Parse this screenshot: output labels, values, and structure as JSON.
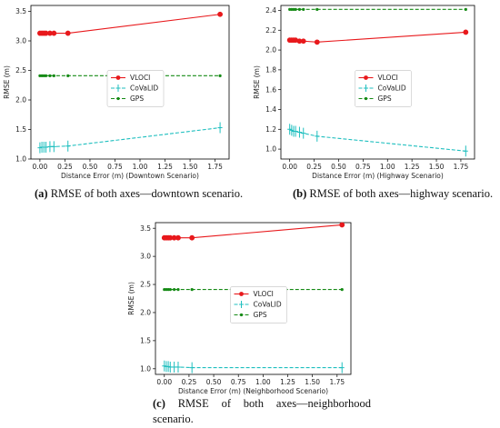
{
  "x_values": [
    0.0,
    0.02,
    0.04,
    0.06,
    0.1,
    0.14,
    0.28,
    1.8
  ],
  "chart_data": [
    {
      "type": "line",
      "xlabel": "Distance Error (m) (Downtown Scenario)",
      "ylabel": "RMSE (m)",
      "xlim": [
        -0.09,
        1.89
      ],
      "ylim": [
        1.0,
        3.6
      ],
      "xticks": [
        "0.00",
        "0.25",
        "0.50",
        "0.75",
        "1.00",
        "1.25",
        "1.50",
        "1.75"
      ],
      "yticks": [
        "1.0",
        "1.5",
        "2.0",
        "2.5",
        "3.0",
        "3.5"
      ],
      "legend": "center",
      "series": [
        {
          "name": "VLOCI",
          "color": "#e8191c",
          "marker": "diamond",
          "values": [
            3.13,
            3.13,
            3.13,
            3.13,
            3.13,
            3.13,
            3.13,
            3.45
          ]
        },
        {
          "name": "CoVaLID",
          "color": "#1fbfbf",
          "marker": "plus",
          "values": [
            1.19,
            1.2,
            1.2,
            1.2,
            1.21,
            1.21,
            1.22,
            1.53
          ]
        },
        {
          "name": "GPS",
          "color": "#158a15",
          "marker": "dot",
          "values": [
            2.41,
            2.41,
            2.41,
            2.41,
            2.41,
            2.41,
            2.41,
            2.41
          ]
        }
      ]
    },
    {
      "type": "line",
      "xlabel": "Distance Error (m) (Highway Scenario)",
      "ylabel": "RMSE (m)",
      "xlim": [
        -0.09,
        1.89
      ],
      "ylim": [
        0.9,
        2.45
      ],
      "xticks": [
        "0.00",
        "0.25",
        "0.50",
        "0.75",
        "1.00",
        "1.25",
        "1.50",
        "1.75"
      ],
      "yticks": [
        "1.0",
        "1.2",
        "1.4",
        "1.6",
        "1.8",
        "2.0",
        "2.2",
        "2.4"
      ],
      "legend": "center",
      "series": [
        {
          "name": "VLOCI",
          "color": "#e8191c",
          "marker": "diamond",
          "values": [
            2.1,
            2.1,
            2.1,
            2.1,
            2.09,
            2.09,
            2.08,
            2.18
          ]
        },
        {
          "name": "CoVaLID",
          "color": "#1fbfbf",
          "marker": "plus",
          "values": [
            1.2,
            1.19,
            1.18,
            1.18,
            1.17,
            1.16,
            1.13,
            0.98
          ]
        },
        {
          "name": "GPS",
          "color": "#158a15",
          "marker": "dot",
          "values": [
            2.41,
            2.41,
            2.41,
            2.41,
            2.41,
            2.41,
            2.41,
            2.41
          ]
        }
      ]
    },
    {
      "type": "line",
      "xlabel": "Distance Error (m) (Neighborhood Scenario)",
      "ylabel": "RMSE (m)",
      "xlim": [
        -0.09,
        1.89
      ],
      "ylim": [
        0.9,
        3.6
      ],
      "xticks": [
        "0.00",
        "0.25",
        "0.50",
        "0.75",
        "1.00",
        "1.25",
        "1.50",
        "1.75"
      ],
      "yticks": [
        "1.0",
        "1.5",
        "2.0",
        "2.5",
        "3.0",
        "3.5"
      ],
      "legend": "center",
      "series": [
        {
          "name": "VLOCI",
          "color": "#e8191c",
          "marker": "diamond",
          "values": [
            3.33,
            3.33,
            3.33,
            3.33,
            3.33,
            3.33,
            3.33,
            3.56
          ]
        },
        {
          "name": "CoVaLID",
          "color": "#1fbfbf",
          "marker": "plus",
          "values": [
            1.05,
            1.04,
            1.04,
            1.03,
            1.03,
            1.03,
            1.02,
            1.02
          ]
        },
        {
          "name": "GPS",
          "color": "#158a15",
          "marker": "dot",
          "values": [
            2.41,
            2.41,
            2.41,
            2.41,
            2.41,
            2.41,
            2.41,
            2.41
          ]
        }
      ]
    }
  ],
  "captions": [
    {
      "tag": "(a)",
      "text": "RMSE of both axes—downtown scenario."
    },
    {
      "tag": "(b)",
      "text": "RMSE of both axes—highway scenario."
    },
    {
      "tag": "(c)",
      "text": "RMSE of both axes—neighborhood scenario."
    }
  ]
}
